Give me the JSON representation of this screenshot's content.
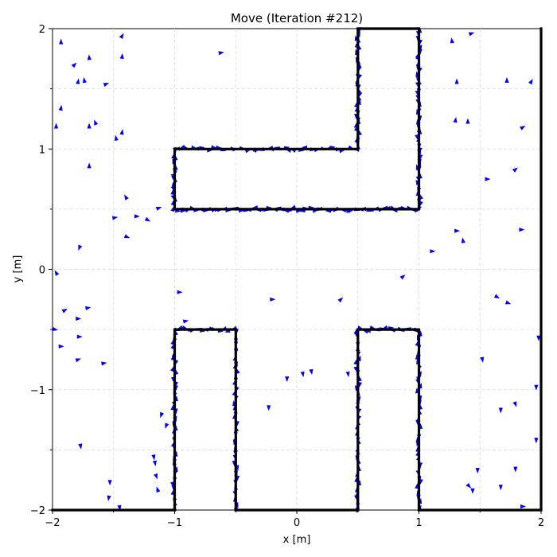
{
  "chart_data": {
    "type": "scatter",
    "title": "Move (Iteration #212)",
    "xlabel": "x [m]",
    "ylabel": "y [m]",
    "xlim": [
      -2,
      2
    ],
    "ylim": [
      -2,
      2
    ],
    "xticks": [
      -2,
      -1,
      0,
      1,
      2
    ],
    "yticks": [
      -2,
      -1,
      0,
      1,
      2
    ],
    "xtick_labels": [
      "−2",
      "−1",
      "0",
      "1",
      "2"
    ],
    "ytick_labels": [
      "−2",
      "−1",
      "0",
      "1",
      "2"
    ],
    "grid": true,
    "colors": {
      "particles": "#0000ff",
      "walls": "#000000"
    },
    "walls": [
      [
        [
          -1.0,
          -2.0
        ],
        [
          -1.0,
          -0.5
        ],
        [
          -0.5,
          -0.5
        ],
        [
          -0.5,
          -2.0
        ]
      ],
      [
        [
          0.5,
          -2.0
        ],
        [
          0.5,
          -0.5
        ],
        [
          1.0,
          -0.5
        ],
        [
          1.0,
          -2.0
        ]
      ],
      [
        [
          0.5,
          2.0
        ],
        [
          0.5,
          1.0
        ],
        [
          -1.0,
          1.0
        ],
        [
          -1.0,
          0.5
        ],
        [
          1.0,
          0.5
        ],
        [
          1.0,
          2.0
        ]
      ],
      [
        [
          -2.0,
          -2.0
        ],
        [
          -1.0,
          -2.0
        ]
      ],
      [
        [
          -0.5,
          -2.0
        ],
        [
          0.5,
          -2.0
        ]
      ],
      [
        [
          1.0,
          -2.0
        ],
        [
          2.0,
          -2.0
        ],
        [
          2.0,
          2.0
        ]
      ],
      [
        [
          0.5,
          2.0
        ],
        [
          1.0,
          2.0
        ]
      ]
    ],
    "particles": [
      [
        -1.93,
        1.89,
        90
      ],
      [
        -1.82,
        1.7,
        45
      ],
      [
        -1.79,
        1.56,
        80
      ],
      [
        -1.74,
        1.57,
        100
      ],
      [
        -1.7,
        1.76,
        95
      ],
      [
        -1.56,
        1.54,
        20
      ],
      [
        -1.43,
        1.77,
        85
      ],
      [
        -1.43,
        1.94,
        60
      ],
      [
        -1.97,
        1.19,
        90
      ],
      [
        -1.93,
        1.34,
        80
      ],
      [
        -1.7,
        1.19,
        90
      ],
      [
        -1.65,
        1.22,
        110
      ],
      [
        -1.48,
        1.09,
        100
      ],
      [
        -1.43,
        1.14,
        80
      ],
      [
        -1.7,
        0.86,
        90
      ],
      [
        -1.4,
        0.6,
        120
      ],
      [
        -1.49,
        0.43,
        10
      ],
      [
        -1.31,
        0.44,
        0
      ],
      [
        -1.22,
        0.41,
        -30
      ],
      [
        -1.13,
        0.51,
        20
      ],
      [
        -1.39,
        0.27,
        -20
      ],
      [
        -1.78,
        0.18,
        -110
      ],
      [
        -1.97,
        -0.03,
        120
      ],
      [
        -1.9,
        -0.34,
        30
      ],
      [
        -1.79,
        -0.41,
        0
      ],
      [
        -1.71,
        -0.32,
        10
      ],
      [
        -1.98,
        -0.5,
        -10
      ],
      [
        -1.93,
        -0.64,
        0
      ],
      [
        -1.78,
        -0.56,
        0
      ],
      [
        -1.79,
        -0.75,
        20
      ],
      [
        -1.58,
        -0.78,
        10
      ],
      [
        -0.96,
        -0.19,
        0
      ],
      [
        -0.91,
        -0.43,
        10
      ],
      [
        -1.11,
        -1.21,
        -110
      ],
      [
        -1.07,
        -1.3,
        -110
      ],
      [
        -1.17,
        -1.56,
        -80
      ],
      [
        -1.16,
        -1.61,
        -80
      ],
      [
        -1.15,
        -1.72,
        -70
      ],
      [
        -1.14,
        -1.83,
        110
      ],
      [
        -1.53,
        -1.77,
        -90
      ],
      [
        -1.54,
        -1.9,
        -100
      ],
      [
        -1.45,
        -1.98,
        -80
      ],
      [
        -1.77,
        -1.47,
        -80
      ],
      [
        -0.2,
        -0.25,
        0
      ],
      [
        -0.23,
        -1.15,
        -90
      ],
      [
        -0.08,
        -0.91,
        -90
      ],
      [
        0.05,
        -0.87,
        -80
      ],
      [
        0.12,
        -0.85,
        -80
      ],
      [
        0.36,
        -0.25,
        45
      ],
      [
        0.42,
        -0.87,
        -80
      ],
      [
        0.87,
        -0.06,
        40
      ],
      [
        1.11,
        0.15,
        0
      ],
      [
        1.31,
        0.32,
        0
      ],
      [
        1.36,
        0.24,
        100
      ],
      [
        1.31,
        1.56,
        90
      ],
      [
        1.3,
        1.24,
        80
      ],
      [
        1.4,
        1.23,
        90
      ],
      [
        1.27,
        1.9,
        100
      ],
      [
        1.43,
        1.96,
        20
      ],
      [
        1.56,
        0.75,
        0
      ],
      [
        1.72,
        1.57,
        90
      ],
      [
        1.79,
        0.83,
        40
      ],
      [
        1.85,
        1.18,
        30
      ],
      [
        1.92,
        1.56,
        60
      ],
      [
        1.84,
        0.33,
        0
      ],
      [
        1.64,
        -0.23,
        -30
      ],
      [
        1.73,
        -0.28,
        -20
      ],
      [
        1.52,
        -0.75,
        -80
      ],
      [
        1.98,
        -0.57,
        -90
      ],
      [
        1.96,
        -0.98,
        -90
      ],
      [
        1.96,
        -1.42,
        -90
      ],
      [
        1.79,
        -1.12,
        -70
      ],
      [
        1.67,
        -1.17,
        -90
      ],
      [
        1.79,
        -1.66,
        -90
      ],
      [
        1.67,
        -1.81,
        -90
      ],
      [
        1.48,
        -1.67,
        -90
      ],
      [
        1.41,
        -1.8,
        -45
      ],
      [
        1.44,
        -1.84,
        -90
      ],
      [
        1.85,
        -1.97,
        0
      ],
      [
        -0.62,
        1.8,
        10
      ]
    ],
    "boundary_particles": [
      [
        -1.0,
        -2.0,
        -1.0,
        -0.5,
        36,
        "v"
      ],
      [
        -0.5,
        -2.0,
        -0.5,
        -0.5,
        36,
        "v"
      ],
      [
        -1.0,
        -0.5,
        -0.5,
        -0.5,
        14,
        "h"
      ],
      [
        0.5,
        -2.0,
        0.5,
        -0.5,
        36,
        "v"
      ],
      [
        1.0,
        -2.0,
        1.0,
        -0.5,
        36,
        "v"
      ],
      [
        0.5,
        -0.5,
        1.0,
        -0.5,
        14,
        "h"
      ],
      [
        0.5,
        1.0,
        0.5,
        2.0,
        34,
        "v"
      ],
      [
        1.0,
        0.5,
        1.0,
        2.0,
        46,
        "v"
      ],
      [
        -1.0,
        0.5,
        -1.0,
        1.0,
        16,
        "v"
      ],
      [
        -1.0,
        1.0,
        0.5,
        1.0,
        34,
        "h"
      ],
      [
        -1.0,
        0.5,
        1.0,
        0.5,
        60,
        "h"
      ]
    ]
  }
}
